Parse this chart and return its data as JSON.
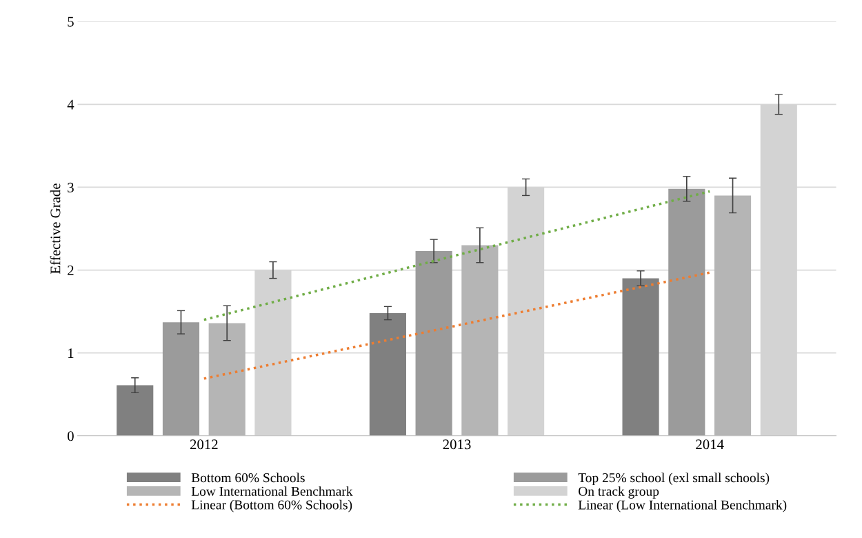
{
  "chart_data": {
    "type": "bar",
    "ylabel": "Effective Grade",
    "categories": [
      "2012",
      "2013",
      "2014"
    ],
    "ylim": [
      0,
      5
    ],
    "yticks": [
      0,
      1,
      2,
      3,
      4,
      5
    ],
    "grid": "y",
    "legend": "bottom",
    "series": [
      {
        "name": "Bottom 60% Schools",
        "color": "#808080",
        "values": [
          0.61,
          1.48,
          1.9
        ],
        "errors": [
          0.09,
          0.08,
          0.09
        ]
      },
      {
        "name": "Top 25% school (exl small schools)",
        "color": "#9b9b9b",
        "values": [
          1.37,
          2.23,
          2.98
        ],
        "errors": [
          0.14,
          0.14,
          0.15
        ]
      },
      {
        "name": "Low International Benchmark",
        "color": "#b5b5b5",
        "values": [
          1.36,
          2.3,
          2.9
        ],
        "errors": [
          0.21,
          0.21,
          0.21
        ]
      },
      {
        "name": "On track group",
        "color": "#d3d3d3",
        "values": [
          2.0,
          3.0,
          4.0
        ],
        "errors": [
          0.1,
          0.1,
          0.12
        ]
      },
      {
        "name": "Linear (Bottom 60% Schools)",
        "type": "line",
        "color": "#ed7d31",
        "line_style": "dotted",
        "values": [
          0.69,
          1.33,
          1.97
        ]
      },
      {
        "name": "Linear (Low International Benchmark)",
        "type": "line",
        "color": "#70ad47",
        "line_style": "dotted",
        "values": [
          1.4,
          2.18,
          2.95
        ]
      }
    ]
  }
}
